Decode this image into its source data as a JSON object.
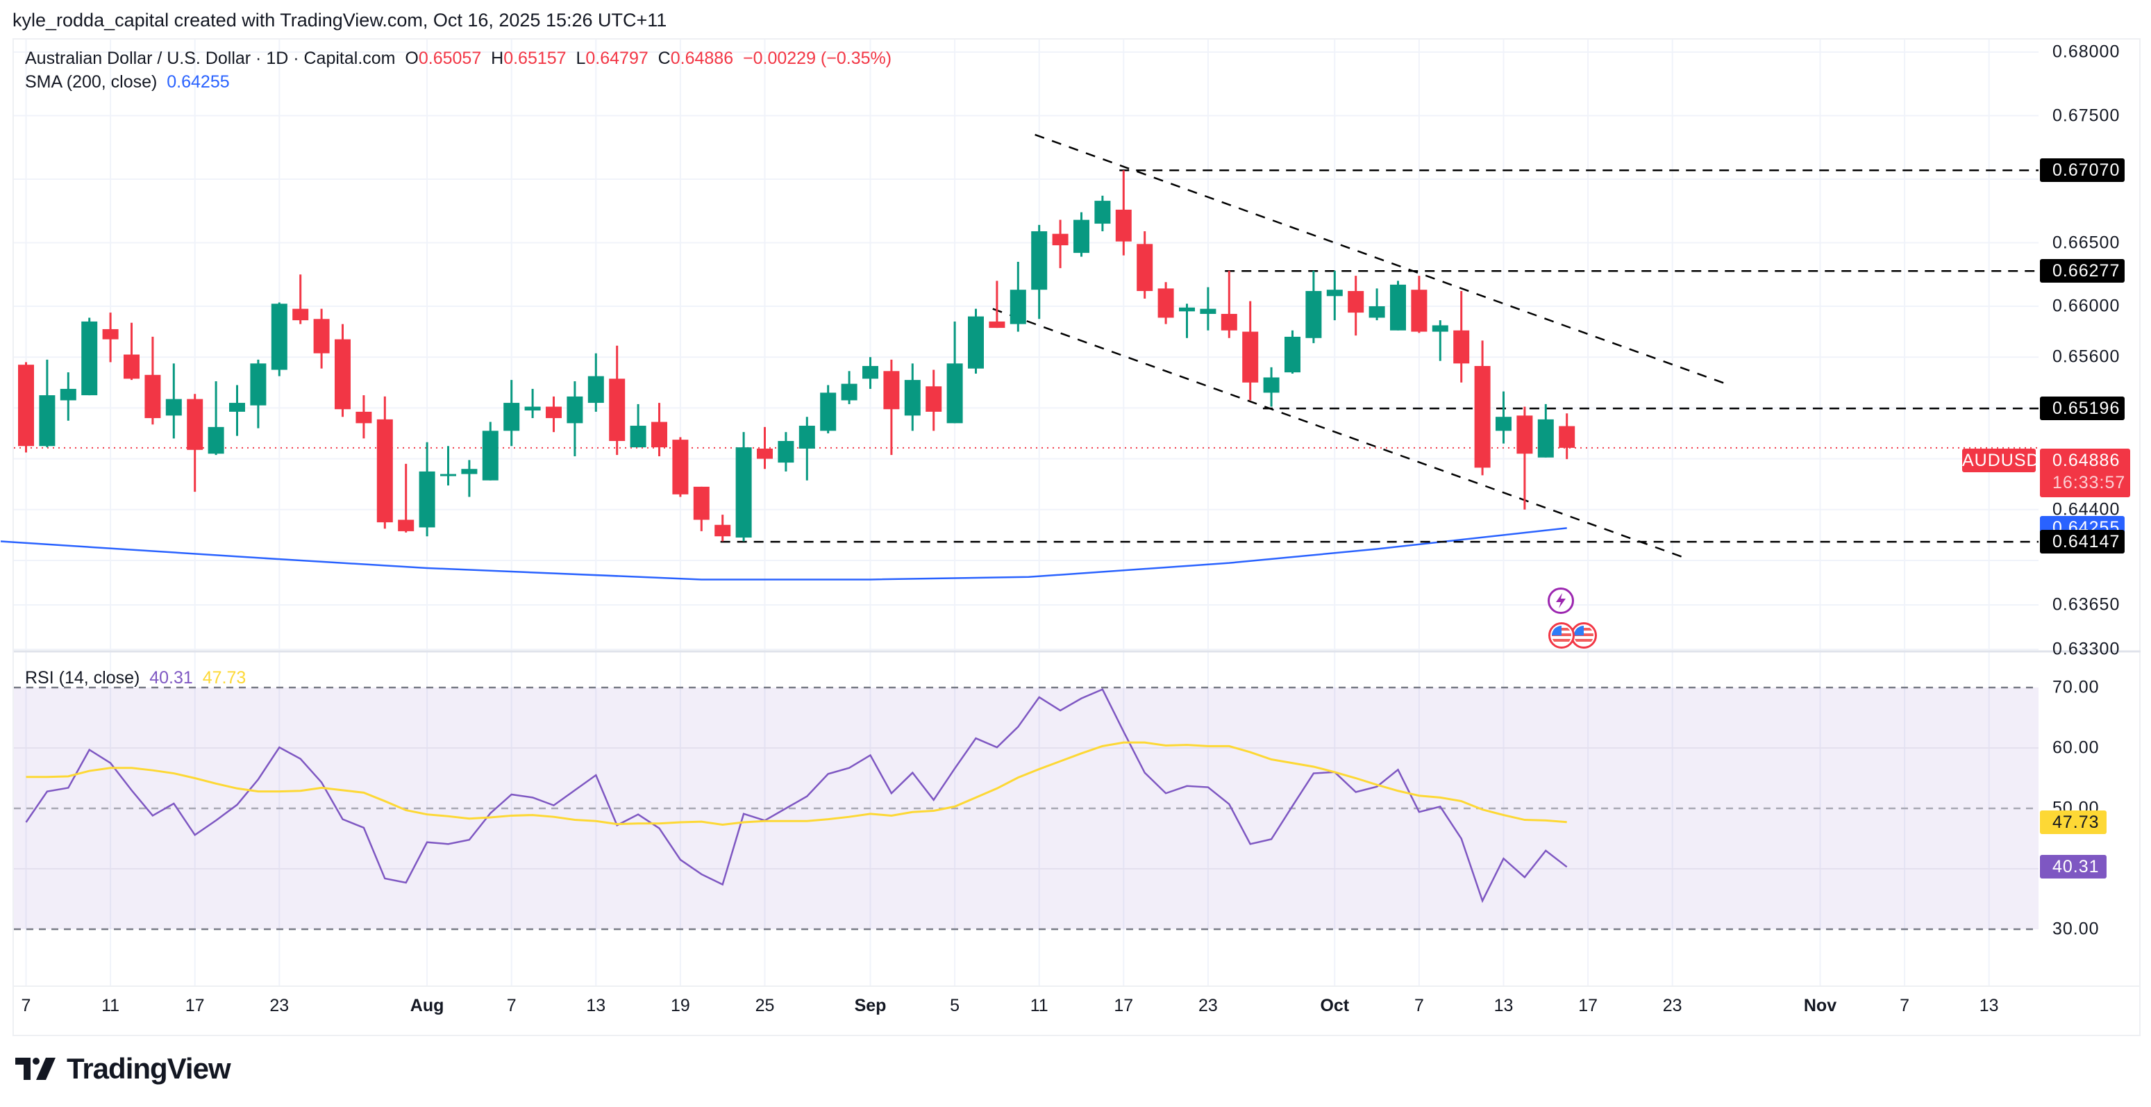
{
  "credit": "kyle_rodda_capital created with TradingView.com, Oct 16, 2025 15:26 UTC+11",
  "legend": {
    "symbol": "Australian Dollar / U.S. Dollar · 1D · Capital.com",
    "o_label": "O",
    "o": "0.65057",
    "h_label": "H",
    "h": "0.65157",
    "l_label": "L",
    "l": "0.64797",
    "c_label": "C",
    "c": "0.64886",
    "change": "−0.00229 (−0.35%)",
    "sma_label": "SMA (200, close)",
    "sma_value": "0.64255"
  },
  "rsi_legend": {
    "label": "RSI (14, close)",
    "rsi": "40.31",
    "ma": "47.73"
  },
  "price_axis": {
    "ticks": [
      "0.68000",
      "0.67500",
      "0.66500",
      "0.66000",
      "0.65600",
      "0.64400",
      "0.63650",
      "0.63300"
    ],
    "levels": [
      {
        "text": "0.67070",
        "kind": "line"
      },
      {
        "text": "0.66277",
        "kind": "line"
      },
      {
        "text": "0.65196",
        "kind": "line"
      },
      {
        "text": "0.64255",
        "kind": "sma"
      },
      {
        "text": "0.64147",
        "kind": "line"
      }
    ],
    "last_price": "0.64886",
    "countdown": "16:33:57",
    "symbol_tag": "AUDUSD"
  },
  "rsi_axis": {
    "ticks": [
      "70.00",
      "60.00",
      "50.00",
      "30.00"
    ],
    "rsi_tag": "40.31",
    "ma_tag": "47.73"
  },
  "time_axis": [
    {
      "t": "7",
      "bar": 0
    },
    {
      "t": "11",
      "bar": 4
    },
    {
      "t": "17",
      "bar": 8
    },
    {
      "t": "23",
      "bar": 12
    },
    {
      "t": "Aug",
      "bar": 19,
      "bold": true
    },
    {
      "t": "7",
      "bar": 23
    },
    {
      "t": "13",
      "bar": 27
    },
    {
      "t": "19",
      "bar": 31
    },
    {
      "t": "25",
      "bar": 35
    },
    {
      "t": "Sep",
      "bar": 40,
      "bold": true
    },
    {
      "t": "5",
      "bar": 44
    },
    {
      "t": "11",
      "bar": 48
    },
    {
      "t": "17",
      "bar": 52
    },
    {
      "t": "23",
      "bar": 56
    },
    {
      "t": "Oct",
      "bar": 62,
      "bold": true
    },
    {
      "t": "7",
      "bar": 66
    },
    {
      "t": "13",
      "bar": 70
    },
    {
      "t": "17",
      "bar": 74
    },
    {
      "t": "23",
      "bar": 78
    },
    {
      "t": "Nov",
      "bar": 85,
      "bold": true
    },
    {
      "t": "7",
      "bar": 89
    },
    {
      "t": "13",
      "bar": 93
    }
  ],
  "logo": "TradingView",
  "events": [
    "lightning-event-icon",
    "us-flag-event-icon",
    "us-flag-event-icon"
  ],
  "colors": {
    "up": "#089981",
    "down": "#F23645",
    "sma": "#2962FF",
    "rsi": "#7E57C2",
    "rsi_ma": "#FDD835",
    "level": "#000000"
  },
  "chart_data": [
    {
      "type": "candlestick",
      "title": "Australian Dollar / U.S. Dollar · 1D · Capital.com",
      "x_start": "2025-07-07",
      "ylim": [
        0.633,
        0.68
      ],
      "price_grid": [
        0.68,
        0.675,
        0.67,
        0.665,
        0.66,
        0.656,
        0.652,
        0.648,
        0.644,
        0.64,
        0.6365,
        0.633
      ],
      "ohlc": [
        [
          0.6554,
          0.6556,
          0.6485,
          0.649
        ],
        [
          0.649,
          0.6558,
          0.6489,
          0.653
        ],
        [
          0.6526,
          0.6548,
          0.651,
          0.6535
        ],
        [
          0.653,
          0.6591,
          0.653,
          0.6588
        ],
        [
          0.6582,
          0.6595,
          0.6556,
          0.6574
        ],
        [
          0.6562,
          0.6587,
          0.6542,
          0.6543
        ],
        [
          0.6546,
          0.6576,
          0.6507,
          0.6512
        ],
        [
          0.6514,
          0.6555,
          0.6496,
          0.6527
        ],
        [
          0.6527,
          0.6531,
          0.6454,
          0.6487
        ],
        [
          0.6484,
          0.6541,
          0.6483,
          0.6505
        ],
        [
          0.6517,
          0.6538,
          0.6498,
          0.6524
        ],
        [
          0.6522,
          0.6558,
          0.6504,
          0.6555
        ],
        [
          0.655,
          0.6603,
          0.6545,
          0.6602
        ],
        [
          0.6598,
          0.6625,
          0.6586,
          0.6589
        ],
        [
          0.659,
          0.6598,
          0.6551,
          0.6563
        ],
        [
          0.6574,
          0.6586,
          0.6513,
          0.6519
        ],
        [
          0.6517,
          0.653,
          0.6496,
          0.6508
        ],
        [
          0.6511,
          0.6529,
          0.6425,
          0.643
        ],
        [
          0.6432,
          0.6476,
          0.6422,
          0.6423
        ],
        [
          0.6426,
          0.6493,
          0.6419,
          0.647
        ],
        [
          0.6467,
          0.649,
          0.6459,
          0.6468
        ],
        [
          0.6468,
          0.6479,
          0.645,
          0.6472
        ],
        [
          0.6463,
          0.6509,
          0.6463,
          0.6502
        ],
        [
          0.6502,
          0.6542,
          0.649,
          0.6524
        ],
        [
          0.6518,
          0.6535,
          0.6512,
          0.6521
        ],
        [
          0.6521,
          0.6529,
          0.6501,
          0.6512
        ],
        [
          0.6508,
          0.6541,
          0.6482,
          0.6529
        ],
        [
          0.6524,
          0.6563,
          0.6517,
          0.6545
        ],
        [
          0.6543,
          0.6569,
          0.6483,
          0.6494
        ],
        [
          0.6489,
          0.6523,
          0.6489,
          0.6506
        ],
        [
          0.6509,
          0.6524,
          0.6482,
          0.6489
        ],
        [
          0.6495,
          0.6497,
          0.645,
          0.6452
        ],
        [
          0.6458,
          0.6458,
          0.6423,
          0.6432
        ],
        [
          0.6428,
          0.6436,
          0.6415,
          0.6419
        ],
        [
          0.6418,
          0.6501,
          0.6415,
          0.6489
        ],
        [
          0.6488,
          0.6505,
          0.6472,
          0.648
        ],
        [
          0.6477,
          0.6501,
          0.647,
          0.6494
        ],
        [
          0.6488,
          0.6513,
          0.6463,
          0.6506
        ],
        [
          0.6502,
          0.6538,
          0.65,
          0.6532
        ],
        [
          0.6526,
          0.6549,
          0.6523,
          0.6539
        ],
        [
          0.6543,
          0.656,
          0.6535,
          0.6553
        ],
        [
          0.6549,
          0.6558,
          0.6483,
          0.6519
        ],
        [
          0.6514,
          0.6555,
          0.6502,
          0.6542
        ],
        [
          0.6537,
          0.655,
          0.6502,
          0.6517
        ],
        [
          0.6508,
          0.6588,
          0.6508,
          0.6555
        ],
        [
          0.6551,
          0.6598,
          0.6547,
          0.6592
        ],
        [
          0.6588,
          0.662,
          0.6583,
          0.6583
        ],
        [
          0.6586,
          0.6635,
          0.658,
          0.6613
        ],
        [
          0.6613,
          0.6664,
          0.659,
          0.6659
        ],
        [
          0.6657,
          0.6668,
          0.663,
          0.6648
        ],
        [
          0.6642,
          0.6674,
          0.6639,
          0.6668
        ],
        [
          0.6665,
          0.6687,
          0.6659,
          0.6683
        ],
        [
          0.6676,
          0.6707,
          0.664,
          0.6651
        ],
        [
          0.6649,
          0.6659,
          0.6606,
          0.6612
        ],
        [
          0.6614,
          0.6619,
          0.6586,
          0.6591
        ],
        [
          0.6596,
          0.6602,
          0.6575,
          0.6599
        ],
        [
          0.6594,
          0.6615,
          0.6581,
          0.6598
        ],
        [
          0.6594,
          0.6628,
          0.6575,
          0.6581
        ],
        [
          0.658,
          0.6604,
          0.6526,
          0.654
        ],
        [
          0.6532,
          0.6552,
          0.6521,
          0.6544
        ],
        [
          0.6548,
          0.6581,
          0.6547,
          0.6576
        ],
        [
          0.6575,
          0.6628,
          0.6571,
          0.6612
        ],
        [
          0.6608,
          0.6628,
          0.6589,
          0.6613
        ],
        [
          0.6612,
          0.6624,
          0.6577,
          0.6595
        ],
        [
          0.6591,
          0.6614,
          0.6589,
          0.66
        ],
        [
          0.6581,
          0.662,
          0.6581,
          0.6617
        ],
        [
          0.6613,
          0.6624,
          0.6579,
          0.658
        ],
        [
          0.658,
          0.6589,
          0.6557,
          0.6585
        ],
        [
          0.6581,
          0.6612,
          0.654,
          0.6555
        ],
        [
          0.6553,
          0.6573,
          0.6467,
          0.6473
        ],
        [
          0.6502,
          0.6533,
          0.6492,
          0.6513
        ],
        [
          0.6514,
          0.6521,
          0.644,
          0.6484
        ],
        [
          0.6481,
          0.6523,
          0.6481,
          0.6511
        ],
        [
          0.65057,
          0.65157,
          0.64797,
          0.64886
        ]
      ],
      "last_price": 0.64886,
      "sma200": [
        [
          -1.2,
          0.6415
        ],
        [
          12,
          0.6401
        ],
        [
          19,
          0.6394
        ],
        [
          32,
          0.6385
        ],
        [
          40,
          0.6385
        ],
        [
          47.5,
          0.6387
        ],
        [
          57,
          0.6398
        ],
        [
          64,
          0.6409
        ],
        [
          73,
          0.64255
        ]
      ],
      "horizontal_levels": [
        [
          51.8,
          0.6707
        ],
        [
          56.8,
          0.66277
        ],
        [
          58.6,
          0.65196
        ],
        [
          32.9,
          0.64147
        ]
      ],
      "trendlines": [
        [
          [
            47.8,
            0.6735
          ],
          [
            80.7,
            0.6538
          ]
        ],
        [
          [
            45.8,
            0.6598
          ],
          [
            78.6,
            0.6402
          ]
        ]
      ]
    },
    {
      "type": "line",
      "title": "RSI (14, close)",
      "ylim": [
        30,
        70
      ],
      "bands": [
        70,
        50,
        30
      ],
      "series": [
        {
          "name": "RSI",
          "values": [
            47.7,
            52.8,
            53.4,
            59.7,
            57.5,
            53.0,
            48.8,
            50.8,
            45.6,
            48.0,
            50.6,
            54.8,
            60.1,
            58.2,
            54.3,
            48.2,
            46.8,
            38.4,
            37.7,
            44.4,
            44.1,
            44.8,
            49.2,
            52.3,
            51.8,
            50.5,
            53.0,
            55.5,
            47.2,
            49.0,
            46.7,
            41.5,
            39.1,
            37.4,
            49.1,
            48.0,
            50.0,
            52.0,
            55.7,
            56.7,
            58.8,
            52.5,
            55.9,
            51.4,
            56.6,
            61.6,
            60.1,
            63.5,
            68.4,
            66.2,
            68.2,
            69.7,
            62.7,
            55.9,
            52.5,
            53.7,
            53.5,
            50.7,
            44.1,
            44.9,
            50.4,
            55.8,
            56.0,
            52.7,
            53.6,
            56.4,
            49.4,
            50.3,
            45.0,
            34.7,
            41.7,
            38.6,
            43.0,
            40.31
          ]
        },
        {
          "name": "RSI MA",
          "values": [
            55.2,
            55.2,
            55.3,
            56.2,
            56.7,
            56.7,
            56.3,
            55.8,
            55.0,
            54.1,
            53.3,
            52.8,
            52.8,
            52.9,
            53.4,
            53.0,
            52.6,
            51.2,
            49.7,
            49.0,
            48.7,
            48.3,
            48.5,
            48.8,
            48.9,
            48.6,
            48.1,
            47.9,
            47.4,
            47.5,
            47.5,
            47.7,
            47.8,
            47.3,
            47.7,
            47.9,
            47.9,
            47.9,
            48.2,
            48.6,
            49.1,
            48.8,
            49.4,
            49.6,
            50.3,
            51.8,
            53.3,
            55.1,
            56.5,
            57.8,
            59.1,
            60.3,
            60.9,
            60.9,
            60.4,
            60.5,
            60.3,
            60.3,
            59.3,
            58.1,
            57.5,
            56.9,
            56.0,
            55.0,
            53.9,
            52.9,
            52.1,
            51.8,
            51.2,
            49.8,
            48.9,
            48.1,
            48.0,
            47.73
          ]
        }
      ]
    }
  ]
}
